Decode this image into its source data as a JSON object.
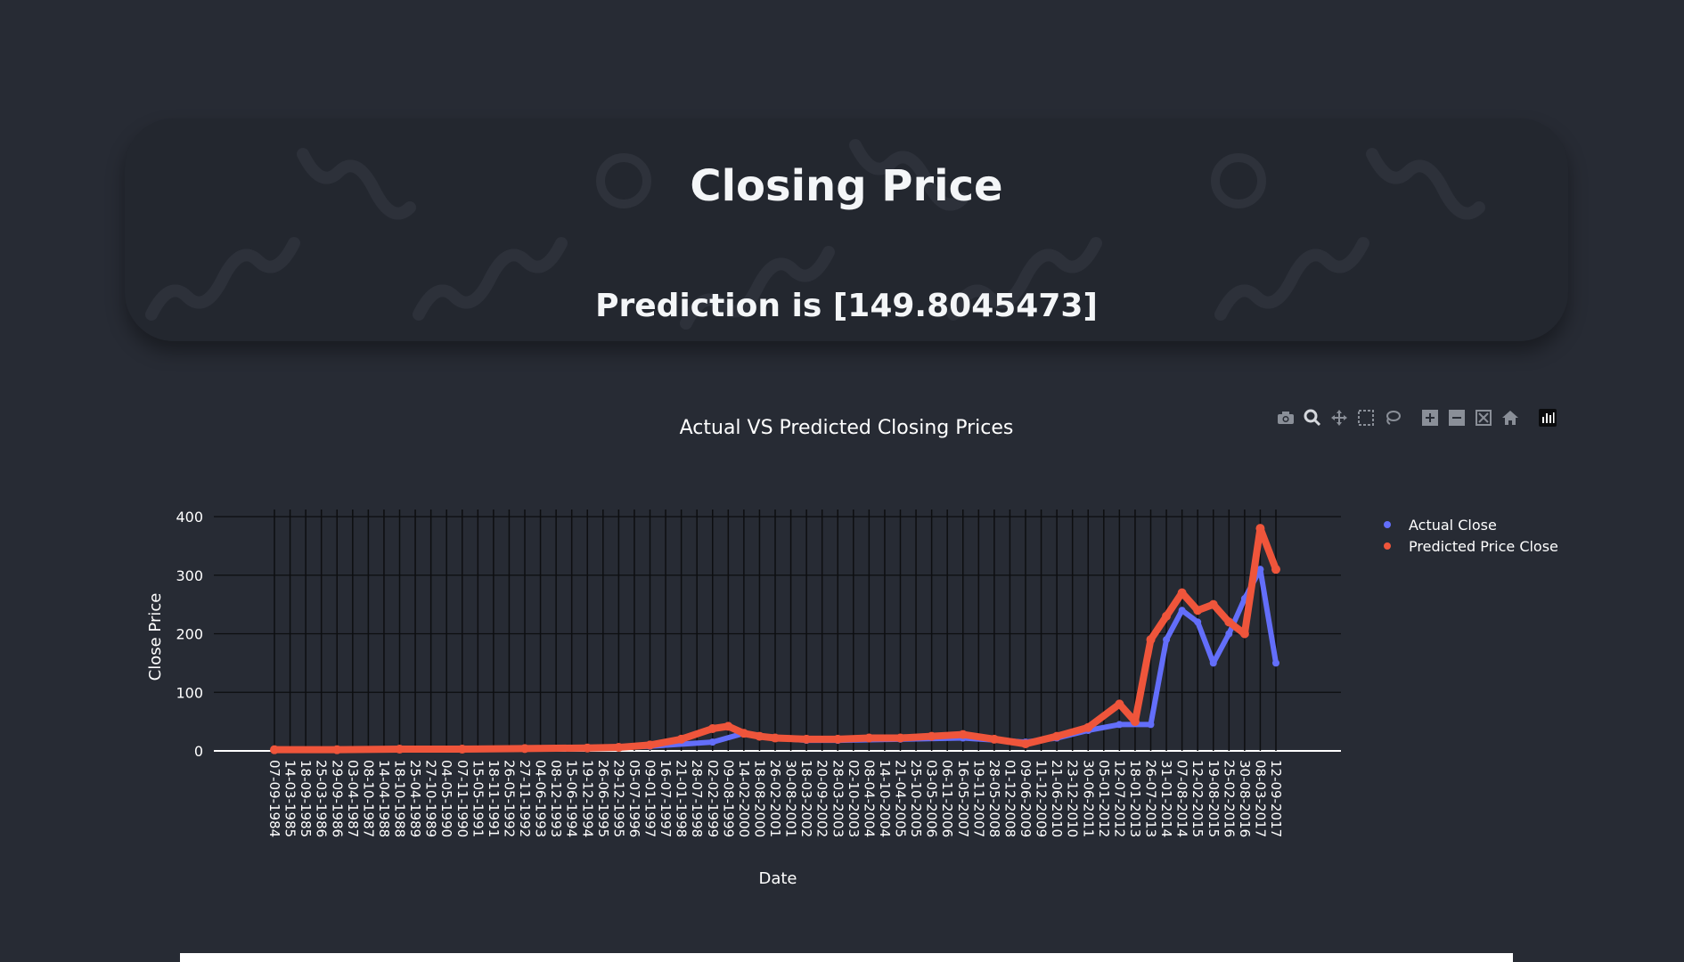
{
  "hero": {
    "title": "Closing Price",
    "prediction": "Prediction is [149.8045473]"
  },
  "modebar": {
    "buttons": [
      "camera-icon",
      "zoom-icon",
      "pan-icon",
      "box-select-icon",
      "lasso-icon",
      "zoom-in-icon",
      "zoom-out-icon",
      "autoscale-icon",
      "reset-axes-icon",
      "plotly-logo-icon"
    ]
  },
  "colors": {
    "background": "#272b34",
    "actual": "#636efa",
    "predicted": "#ef553b",
    "hero": "#23272f"
  },
  "chart_data": {
    "type": "scatter",
    "title": "Actual VS Predicted Closing Prices",
    "xlabel": "Date",
    "ylabel": "Close Price",
    "ylim": [
      0,
      400
    ],
    "yticks": [
      0,
      100,
      200,
      300,
      400
    ],
    "grid": true,
    "legend_position": "top-right",
    "x_tick_labels": [
      "07-09-1984",
      "14-03-1985",
      "18-09-1985",
      "25-03-1986",
      "29-09-1986",
      "03-04-1987",
      "08-10-1987",
      "14-04-1988",
      "18-10-1988",
      "25-04-1989",
      "27-10-1989",
      "04-05-1990",
      "07-11-1990",
      "15-05-1991",
      "18-11-1991",
      "26-05-1992",
      "27-11-1992",
      "04-06-1993",
      "08-12-1993",
      "15-06-1994",
      "19-12-1994",
      "26-06-1995",
      "29-12-1995",
      "05-07-1996",
      "09-01-1997",
      "16-07-1997",
      "21-01-1998",
      "28-07-1998",
      "02-02-1999",
      "09-08-1999",
      "14-02-2000",
      "18-08-2000",
      "26-02-2001",
      "30-08-2001",
      "18-03-2002",
      "20-09-2002",
      "28-03-2003",
      "02-10-2003",
      "08-04-2004",
      "14-10-2004",
      "21-04-2005",
      "25-10-2005",
      "03-05-2006",
      "06-11-2006",
      "16-05-2007",
      "19-11-2007",
      "28-05-2008",
      "01-12-2008",
      "09-06-2009",
      "11-12-2009",
      "21-06-2010",
      "23-12-2010",
      "30-06-2011",
      "05-01-2012",
      "12-07-2012",
      "18-01-2013",
      "26-07-2013",
      "31-01-2014",
      "07-08-2014",
      "12-02-2015",
      "19-08-2015",
      "25-02-2016",
      "30-08-2016",
      "08-03-2017",
      "12-09-2017"
    ],
    "series": [
      {
        "name": "Actual Close",
        "color": "#636efa",
        "x_index": [
          0,
          4,
          8,
          12,
          16,
          20,
          24,
          28,
          30,
          32,
          34,
          36,
          40,
          44,
          48,
          50,
          52,
          54,
          56,
          57,
          58,
          59,
          60,
          61,
          62,
          63,
          64
        ],
        "values": [
          2,
          2,
          3,
          3,
          4,
          5,
          8,
          15,
          30,
          22,
          18,
          18,
          20,
          22,
          15,
          22,
          35,
          45,
          45,
          190,
          240,
          220,
          150,
          200,
          260,
          310,
          150
        ]
      },
      {
        "name": "Predicted Price Close",
        "color": "#ef553b",
        "x_index": [
          0,
          4,
          8,
          12,
          16,
          20,
          22,
          24,
          26,
          28,
          29,
          30,
          31,
          32,
          34,
          36,
          38,
          40,
          42,
          44,
          46,
          48,
          50,
          52,
          54,
          55,
          56,
          57,
          58,
          59,
          60,
          61,
          62,
          63,
          64
        ],
        "values": [
          2,
          2,
          3,
          3,
          4,
          5,
          6,
          10,
          20,
          38,
          42,
          30,
          25,
          22,
          20,
          20,
          22,
          22,
          25,
          28,
          20,
          12,
          25,
          40,
          80,
          50,
          190,
          230,
          270,
          240,
          250,
          220,
          200,
          380,
          310
        ]
      }
    ]
  }
}
